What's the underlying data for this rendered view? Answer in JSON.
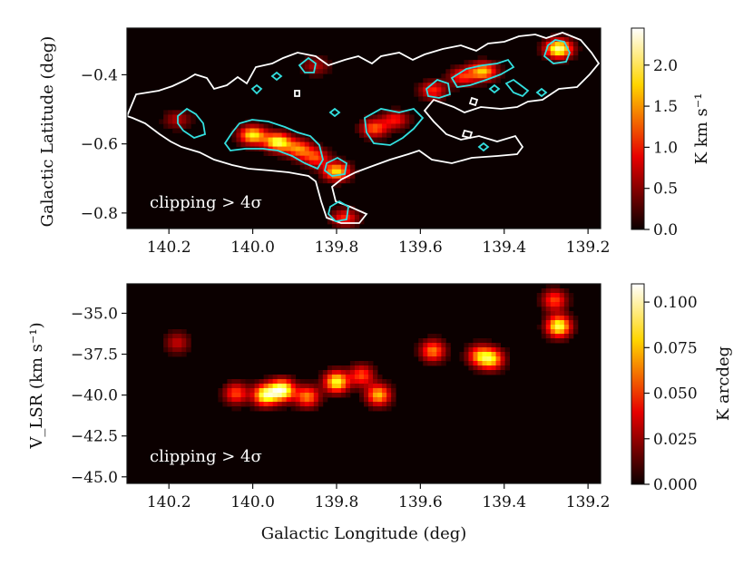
{
  "chart_data": [
    {
      "type": "heatmap",
      "panel": "top",
      "xlabel": "",
      "ylabel": "Galactic Latitude (deg)",
      "xlim": [
        140.3,
        139.17
      ],
      "ylim": [
        -0.845,
        -0.265
      ],
      "xticks": [
        140.2,
        140.0,
        139.8,
        139.6,
        139.4,
        139.2
      ],
      "xtick_labels": [
        "140.2",
        "140.0",
        "139.8",
        "139.6",
        "139.4",
        "139.2"
      ],
      "yticks": [
        -0.4,
        -0.6,
        -0.8
      ],
      "ytick_labels": [
        "−0.4",
        "−0.6",
        "−0.8"
      ],
      "colorbar": {
        "label": "K km s⁻¹",
        "range": [
          0.0,
          2.45
        ],
        "ticks": [
          0.0,
          0.5,
          1.0,
          1.5,
          2.0
        ],
        "tick_labels": [
          "0.0",
          "0.5",
          "1.0",
          "1.5",
          "2.0"
        ],
        "colormap": "hot"
      },
      "annotation": "clipping > 4σ",
      "contours": [
        {
          "color": "#ffffff",
          "meaning": "outer level"
        },
        {
          "color": "#33e0e0",
          "meaning": "inner level"
        }
      ],
      "emission_peaks": [
        {
          "l": 140.0,
          "b": -0.575,
          "value": 1.8
        },
        {
          "l": 139.94,
          "b": -0.595,
          "value": 2.0
        },
        {
          "l": 139.89,
          "b": -0.615,
          "value": 1.3
        },
        {
          "l": 139.85,
          "b": -0.64,
          "value": 1.1
        },
        {
          "l": 139.8,
          "b": -0.68,
          "value": 1.7
        },
        {
          "l": 139.78,
          "b": -0.815,
          "value": 1.0
        },
        {
          "l": 139.71,
          "b": -0.555,
          "value": 1.2
        },
        {
          "l": 139.66,
          "b": -0.53,
          "value": 0.9
        },
        {
          "l": 139.57,
          "b": -0.445,
          "value": 1.0
        },
        {
          "l": 139.45,
          "b": -0.39,
          "value": 1.6
        },
        {
          "l": 139.5,
          "b": -0.405,
          "value": 1.0
        },
        {
          "l": 139.27,
          "b": -0.325,
          "value": 2.2
        },
        {
          "l": 140.18,
          "b": -0.53,
          "value": 0.6
        },
        {
          "l": 139.85,
          "b": -0.375,
          "value": 0.6
        }
      ]
    },
    {
      "type": "heatmap",
      "panel": "bottom",
      "xlabel": "Galactic Longitude (deg)",
      "ylabel": "V_LSR (km s⁻¹)",
      "xlim": [
        140.3,
        139.17
      ],
      "ylim": [
        -45.4,
        -33.2
      ],
      "xticks": [
        140.2,
        140.0,
        139.8,
        139.6,
        139.4,
        139.2
      ],
      "xtick_labels": [
        "140.2",
        "140.0",
        "139.8",
        "139.6",
        "139.4",
        "139.2"
      ],
      "yticks": [
        -35.0,
        -37.5,
        -40.0,
        -42.5,
        -45.0
      ],
      "ytick_labels": [
        "−35.0",
        "−37.5",
        "−40.0",
        "−42.5",
        "−45.0"
      ],
      "colorbar": {
        "label": "K arcdeg",
        "range": [
          0.0,
          0.11
        ],
        "ticks": [
          0.0,
          0.025,
          0.05,
          0.075,
          0.1
        ],
        "tick_labels": [
          "0.000",
          "0.025",
          "0.050",
          "0.075",
          "0.100"
        ],
        "colormap": "hot"
      },
      "annotation": "clipping > 4σ",
      "emission_peaks": [
        {
          "l": 140.18,
          "v": -36.8,
          "value": 0.03
        },
        {
          "l": 140.04,
          "v": -39.9,
          "value": 0.05
        },
        {
          "l": 139.97,
          "v": -40.0,
          "value": 0.09
        },
        {
          "l": 139.93,
          "v": -39.7,
          "value": 0.1
        },
        {
          "l": 139.87,
          "v": -40.1,
          "value": 0.06
        },
        {
          "l": 139.8,
          "v": -39.2,
          "value": 0.085
        },
        {
          "l": 139.74,
          "v": -38.8,
          "value": 0.05
        },
        {
          "l": 139.7,
          "v": -40.0,
          "value": 0.07
        },
        {
          "l": 139.57,
          "v": -37.3,
          "value": 0.06
        },
        {
          "l": 139.46,
          "v": -37.6,
          "value": 0.055
        },
        {
          "l": 139.43,
          "v": -37.8,
          "value": 0.07
        },
        {
          "l": 139.27,
          "v": -35.8,
          "value": 0.09
        },
        {
          "l": 139.28,
          "v": -34.2,
          "value": 0.05
        }
      ]
    }
  ]
}
